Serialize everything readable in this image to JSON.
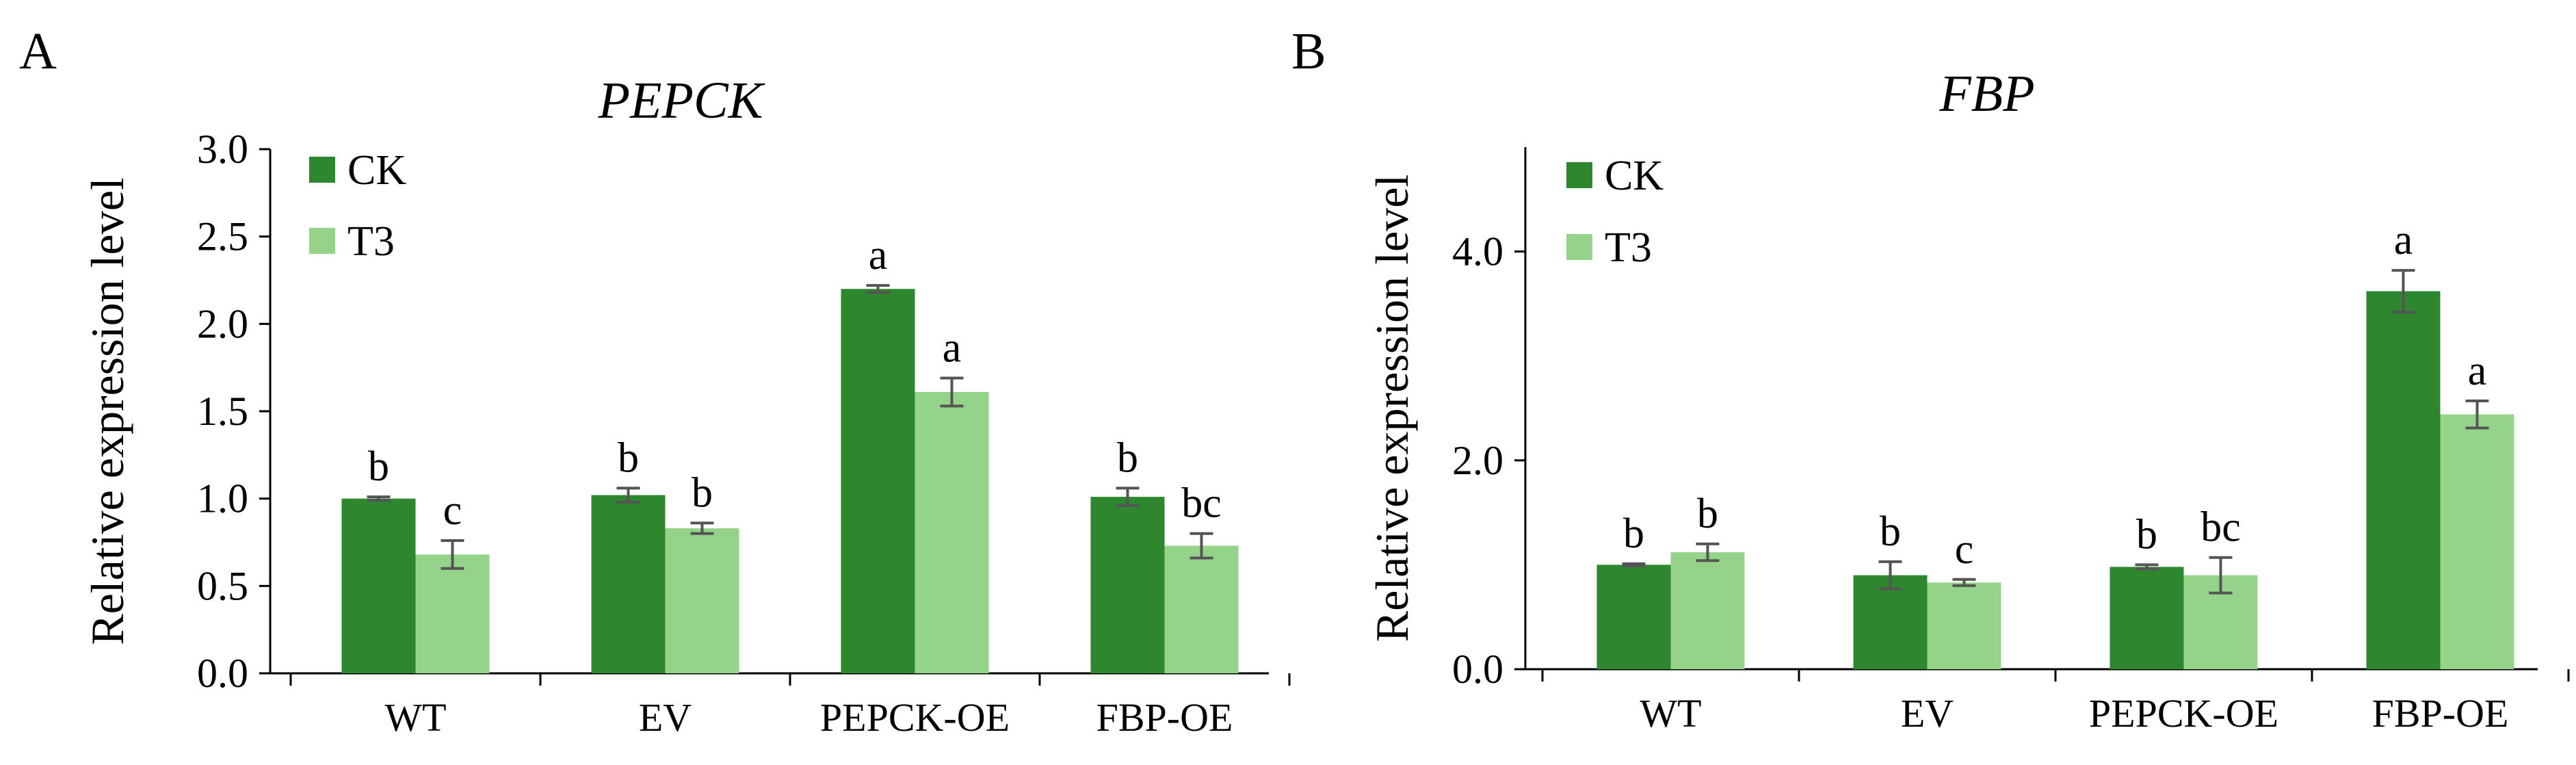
{
  "colors": {
    "CK": "#2e862e",
    "T3": "#96d38a",
    "axis": "#000000",
    "error": "#555555"
  },
  "chart_data": [
    {
      "panel_label": "A",
      "type": "bar",
      "title": "PEPCK",
      "xlabel": "",
      "ylabel": "Relative expression level",
      "categories": [
        "WT",
        "EV",
        "PEPCK-OE",
        "FBP-OE"
      ],
      "series": [
        {
          "name": "CK",
          "values": [
            1.0,
            1.02,
            2.2,
            1.01
          ],
          "errors": [
            0.01,
            0.04,
            0.02,
            0.05
          ],
          "labels": [
            "b",
            "b",
            "a",
            "b"
          ]
        },
        {
          "name": "T3",
          "values": [
            0.68,
            0.83,
            1.61,
            0.73
          ],
          "errors": [
            0.08,
            0.03,
            0.08,
            0.07
          ],
          "labels": [
            "c",
            "b",
            "a",
            "bc"
          ]
        }
      ],
      "ylim": [
        0,
        3.0
      ],
      "yticks": [
        0.0,
        0.5,
        1.0,
        1.5,
        2.0,
        2.5,
        3.0
      ],
      "ytick_labels": [
        "0.0",
        "0.5",
        "1.0",
        "1.5",
        "2.0",
        "2.5",
        "3.0"
      ],
      "legend": "top-left",
      "grid": false
    },
    {
      "panel_label": "B",
      "type": "bar",
      "title": "FBP",
      "xlabel": "",
      "ylabel": "Relative expression level",
      "categories": [
        "WT",
        "EV",
        "PEPCK-OE",
        "FBP-OE"
      ],
      "series": [
        {
          "name": "CK",
          "values": [
            1.0,
            0.9,
            0.98,
            3.62
          ],
          "errors": [
            0.01,
            0.13,
            0.02,
            0.2
          ],
          "labels": [
            "b",
            "b",
            "b",
            "a"
          ]
        },
        {
          "name": "T3",
          "values": [
            1.12,
            0.83,
            0.9,
            2.44
          ],
          "errors": [
            0.08,
            0.03,
            0.17,
            0.13
          ],
          "labels": [
            "b",
            "c",
            "bc",
            "a"
          ]
        }
      ],
      "ylim": [
        0,
        5.0
      ],
      "yticks": [
        0.0,
        2.0,
        4.0
      ],
      "ytick_labels": [
        "0.0",
        "2.0",
        "4.0"
      ],
      "legend": "top-left",
      "grid": false
    }
  ]
}
